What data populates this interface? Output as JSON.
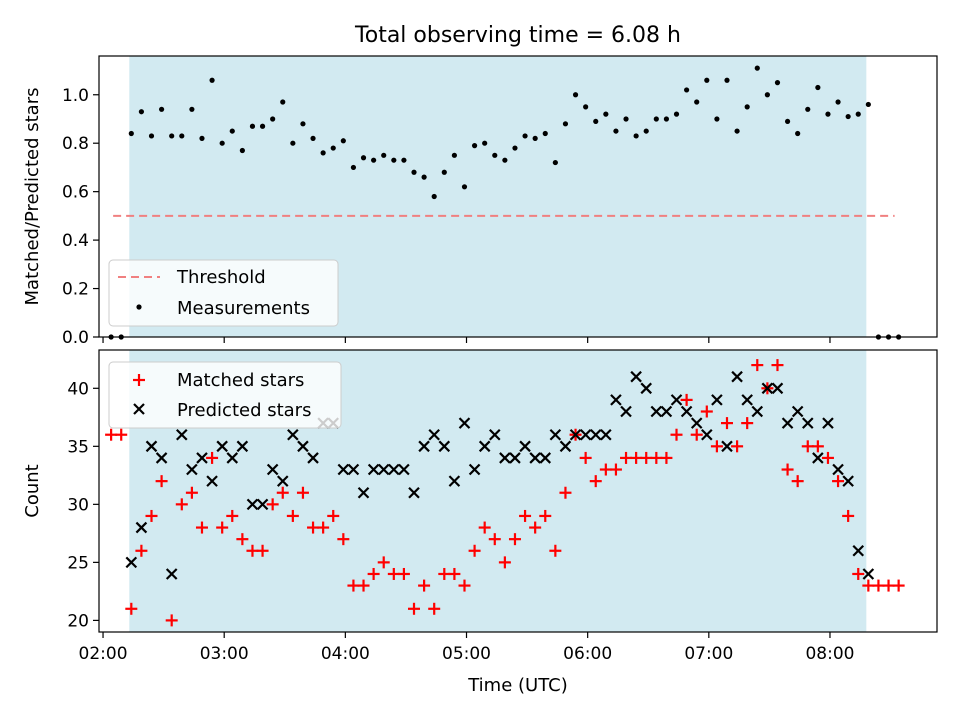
{
  "chart_data": [
    {
      "type": "scatter",
      "title": "Total observing time = 6.08 h",
      "xlabel": "",
      "ylabel": "Matched/Predicted stars",
      "xlim": [
        "01:58",
        "08:53"
      ],
      "ylim": [
        0,
        1.16
      ],
      "yticks": [
        "0.0",
        "0.2",
        "0.4",
        "0.6",
        "0.8",
        "1.0"
      ],
      "shaded_interval": [
        "02:13",
        "08:18"
      ],
      "shaded_color": "#add8e6",
      "threshold": {
        "name": "Threshold",
        "value": 0.5,
        "x": [
          "02:05",
          "08:32"
        ],
        "color": "#f08080"
      },
      "legend_position": "lower-left",
      "series": [
        {
          "name": "Measurements",
          "color": "#000000",
          "points": [
            [
              "02:04",
              0.0
            ],
            [
              "02:09",
              0.0
            ],
            [
              "02:14",
              0.84
            ],
            [
              "02:19",
              0.93
            ],
            [
              "02:24",
              0.83
            ],
            [
              "02:29",
              0.94
            ],
            [
              "02:34",
              0.83
            ],
            [
              "02:39",
              0.83
            ],
            [
              "02:44",
              0.94
            ],
            [
              "02:49",
              0.82
            ],
            [
              "02:54",
              1.06
            ],
            [
              "02:59",
              0.8
            ],
            [
              "03:04",
              0.85
            ],
            [
              "03:09",
              0.77
            ],
            [
              "03:14",
              0.87
            ],
            [
              "03:19",
              0.87
            ],
            [
              "03:24",
              0.9
            ],
            [
              "03:29",
              0.97
            ],
            [
              "03:34",
              0.8
            ],
            [
              "03:39",
              0.88
            ],
            [
              "03:44",
              0.82
            ],
            [
              "03:49",
              0.76
            ],
            [
              "03:54",
              0.78
            ],
            [
              "03:59",
              0.81
            ],
            [
              "04:04",
              0.7
            ],
            [
              "04:09",
              0.74
            ],
            [
              "04:14",
              0.73
            ],
            [
              "04:19",
              0.75
            ],
            [
              "04:24",
              0.73
            ],
            [
              "04:29",
              0.73
            ],
            [
              "04:34",
              0.68
            ],
            [
              "04:39",
              0.66
            ],
            [
              "04:44",
              0.58
            ],
            [
              "04:49",
              0.68
            ],
            [
              "04:54",
              0.75
            ],
            [
              "04:59",
              0.62
            ],
            [
              "05:04",
              0.79
            ],
            [
              "05:09",
              0.8
            ],
            [
              "05:14",
              0.75
            ],
            [
              "05:19",
              0.73
            ],
            [
              "05:24",
              0.78
            ],
            [
              "05:29",
              0.83
            ],
            [
              "05:34",
              0.82
            ],
            [
              "05:39",
              0.84
            ],
            [
              "05:44",
              0.72
            ],
            [
              "05:49",
              0.88
            ],
            [
              "05:54",
              1.0
            ],
            [
              "05:59",
              0.95
            ],
            [
              "06:04",
              0.89
            ],
            [
              "06:09",
              0.92
            ],
            [
              "06:14",
              0.85
            ],
            [
              "06:19",
              0.9
            ],
            [
              "06:24",
              0.83
            ],
            [
              "06:29",
              0.85
            ],
            [
              "06:34",
              0.9
            ],
            [
              "06:39",
              0.9
            ],
            [
              "06:44",
              0.92
            ],
            [
              "06:49",
              1.02
            ],
            [
              "06:54",
              0.97
            ],
            [
              "06:59",
              1.06
            ],
            [
              "07:04",
              0.9
            ],
            [
              "07:09",
              1.06
            ],
            [
              "07:14",
              0.85
            ],
            [
              "07:19",
              0.95
            ],
            [
              "07:24",
              1.11
            ],
            [
              "07:29",
              1.0
            ],
            [
              "07:34",
              1.05
            ],
            [
              "07:39",
              0.89
            ],
            [
              "07:44",
              0.84
            ],
            [
              "07:49",
              0.94
            ],
            [
              "07:54",
              1.03
            ],
            [
              "07:59",
              0.92
            ],
            [
              "08:04",
              0.97
            ],
            [
              "08:09",
              0.91
            ],
            [
              "08:14",
              0.92
            ],
            [
              "08:19",
              0.96
            ],
            [
              "08:24",
              0.0
            ],
            [
              "08:29",
              0.0
            ],
            [
              "08:34",
              0.0
            ]
          ]
        }
      ]
    },
    {
      "type": "scatter",
      "title": "",
      "xlabel": "Time (UTC)",
      "ylabel": "Count",
      "xlim": [
        "01:58",
        "08:53"
      ],
      "ylim": [
        19,
        43.3
      ],
      "yticks": [
        "20",
        "25",
        "30",
        "35",
        "40"
      ],
      "xticks": [
        "02:00",
        "03:00",
        "04:00",
        "05:00",
        "06:00",
        "07:00",
        "08:00"
      ],
      "shaded_interval": [
        "02:13",
        "08:18"
      ],
      "shaded_color": "#add8e6",
      "legend_position": "upper-left",
      "series": [
        {
          "name": "Matched stars",
          "marker": "plus",
          "color": "#ff0000",
          "points": [
            [
              "02:04",
              36
            ],
            [
              "02:09",
              36
            ],
            [
              "02:14",
              21
            ],
            [
              "02:19",
              26
            ],
            [
              "02:24",
              29
            ],
            [
              "02:29",
              32
            ],
            [
              "02:34",
              20
            ],
            [
              "02:39",
              30
            ],
            [
              "02:44",
              31
            ],
            [
              "02:49",
              28
            ],
            [
              "02:54",
              34
            ],
            [
              "02:59",
              28
            ],
            [
              "03:04",
              29
            ],
            [
              "03:09",
              27
            ],
            [
              "03:14",
              26
            ],
            [
              "03:19",
              26
            ],
            [
              "03:24",
              30
            ],
            [
              "03:29",
              31
            ],
            [
              "03:34",
              29
            ],
            [
              "03:39",
              31
            ],
            [
              "03:44",
              28
            ],
            [
              "03:49",
              28
            ],
            [
              "03:54",
              29
            ],
            [
              "03:59",
              27
            ],
            [
              "04:04",
              23
            ],
            [
              "04:09",
              23
            ],
            [
              "04:14",
              24
            ],
            [
              "04:19",
              25
            ],
            [
              "04:24",
              24
            ],
            [
              "04:29",
              24
            ],
            [
              "04:34",
              21
            ],
            [
              "04:39",
              23
            ],
            [
              "04:44",
              21
            ],
            [
              "04:49",
              24
            ],
            [
              "04:54",
              24
            ],
            [
              "04:59",
              23
            ],
            [
              "05:04",
              26
            ],
            [
              "05:09",
              28
            ],
            [
              "05:14",
              27
            ],
            [
              "05:19",
              25
            ],
            [
              "05:24",
              27
            ],
            [
              "05:29",
              29
            ],
            [
              "05:34",
              28
            ],
            [
              "05:39",
              29
            ],
            [
              "05:44",
              26
            ],
            [
              "05:49",
              31
            ],
            [
              "05:54",
              36
            ],
            [
              "05:59",
              34
            ],
            [
              "06:04",
              32
            ],
            [
              "06:09",
              33
            ],
            [
              "06:14",
              33
            ],
            [
              "06:19",
              34
            ],
            [
              "06:24",
              34
            ],
            [
              "06:29",
              34
            ],
            [
              "06:34",
              34
            ],
            [
              "06:39",
              34
            ],
            [
              "06:44",
              36
            ],
            [
              "06:49",
              39
            ],
            [
              "06:54",
              36
            ],
            [
              "06:59",
              38
            ],
            [
              "07:04",
              35
            ],
            [
              "07:09",
              37
            ],
            [
              "07:14",
              35
            ],
            [
              "07:19",
              37
            ],
            [
              "07:24",
              42
            ],
            [
              "07:29",
              40
            ],
            [
              "07:34",
              42
            ],
            [
              "07:39",
              33
            ],
            [
              "07:44",
              32
            ],
            [
              "07:49",
              35
            ],
            [
              "07:54",
              35
            ],
            [
              "07:59",
              34
            ],
            [
              "08:04",
              32
            ],
            [
              "08:09",
              29
            ],
            [
              "08:14",
              24
            ],
            [
              "08:19",
              23
            ],
            [
              "08:24",
              23
            ],
            [
              "08:29",
              23
            ],
            [
              "08:34",
              23
            ]
          ]
        },
        {
          "name": "Predicted stars",
          "marker": "x",
          "color": "#000000",
          "points": [
            [
              "02:14",
              25
            ],
            [
              "02:19",
              28
            ],
            [
              "02:24",
              35
            ],
            [
              "02:29",
              34
            ],
            [
              "02:34",
              24
            ],
            [
              "02:39",
              36
            ],
            [
              "02:44",
              33
            ],
            [
              "02:49",
              34
            ],
            [
              "02:54",
              32
            ],
            [
              "02:59",
              35
            ],
            [
              "03:04",
              34
            ],
            [
              "03:09",
              35
            ],
            [
              "03:14",
              30
            ],
            [
              "03:19",
              30
            ],
            [
              "03:24",
              33
            ],
            [
              "03:29",
              32
            ],
            [
              "03:34",
              36
            ],
            [
              "03:39",
              35
            ],
            [
              "03:44",
              34
            ],
            [
              "03:49",
              37
            ],
            [
              "03:54",
              37
            ],
            [
              "03:59",
              33
            ],
            [
              "04:04",
              33
            ],
            [
              "04:09",
              31
            ],
            [
              "04:14",
              33
            ],
            [
              "04:19",
              33
            ],
            [
              "04:24",
              33
            ],
            [
              "04:29",
              33
            ],
            [
              "04:34",
              31
            ],
            [
              "04:39",
              35
            ],
            [
              "04:44",
              36
            ],
            [
              "04:49",
              35
            ],
            [
              "04:54",
              32
            ],
            [
              "04:59",
              37
            ],
            [
              "05:04",
              33
            ],
            [
              "05:09",
              35
            ],
            [
              "05:14",
              36
            ],
            [
              "05:19",
              34
            ],
            [
              "05:24",
              34
            ],
            [
              "05:29",
              35
            ],
            [
              "05:34",
              34
            ],
            [
              "05:39",
              34
            ],
            [
              "05:44",
              36
            ],
            [
              "05:49",
              35
            ],
            [
              "05:54",
              36
            ],
            [
              "05:59",
              36
            ],
            [
              "06:04",
              36
            ],
            [
              "06:09",
              36
            ],
            [
              "06:14",
              39
            ],
            [
              "06:19",
              38
            ],
            [
              "06:24",
              41
            ],
            [
              "06:29",
              40
            ],
            [
              "06:34",
              38
            ],
            [
              "06:39",
              38
            ],
            [
              "06:44",
              39
            ],
            [
              "06:49",
              38
            ],
            [
              "06:54",
              37
            ],
            [
              "06:59",
              36
            ],
            [
              "07:04",
              39
            ],
            [
              "07:09",
              35
            ],
            [
              "07:14",
              41
            ],
            [
              "07:19",
              39
            ],
            [
              "07:24",
              38
            ],
            [
              "07:29",
              40
            ],
            [
              "07:34",
              40
            ],
            [
              "07:39",
              37
            ],
            [
              "07:44",
              38
            ],
            [
              "07:49",
              37
            ],
            [
              "07:54",
              34
            ],
            [
              "07:59",
              37
            ],
            [
              "08:04",
              33
            ],
            [
              "08:09",
              32
            ],
            [
              "08:14",
              26
            ],
            [
              "08:19",
              24
            ]
          ]
        }
      ]
    }
  ]
}
